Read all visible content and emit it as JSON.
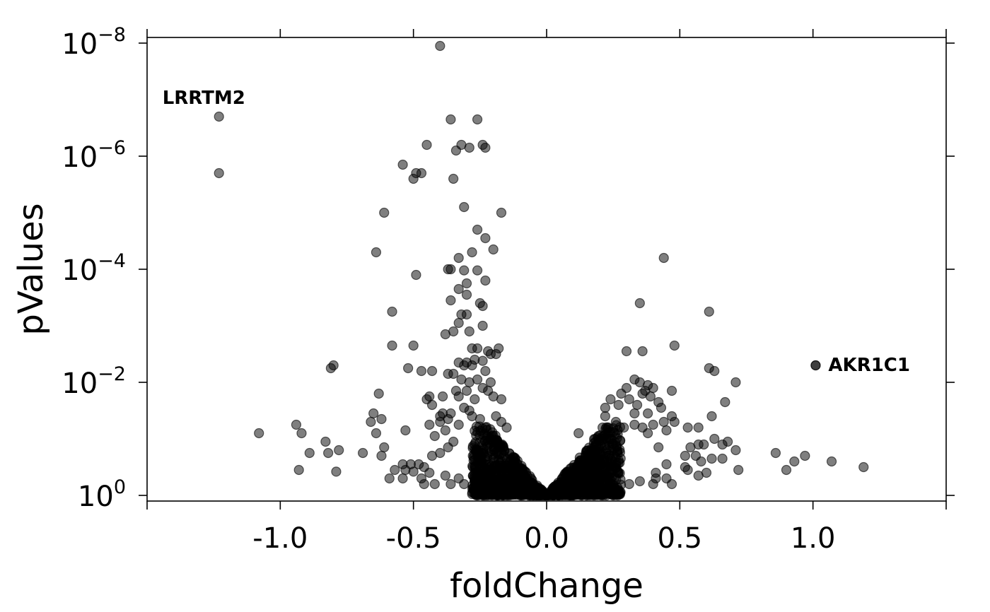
{
  "chart_data": {
    "type": "scatter",
    "xlabel": "foldChange",
    "ylabel": "pValues",
    "xlim": [
      -1.5,
      1.5
    ],
    "ylim_log10": [
      0,
      -8
    ],
    "y_scale": "log (inverted)",
    "x_ticks": [
      {
        "value": -1.0,
        "label": "-1.0"
      },
      {
        "value": -0.5,
        "label": "-0.5"
      },
      {
        "value": 0.0,
        "label": "0.0"
      },
      {
        "value": 0.5,
        "label": "0.5"
      },
      {
        "value": 1.0,
        "label": "1.0"
      }
    ],
    "y_ticks": [
      {
        "exp": 0,
        "base": "10",
        "sup": "0"
      },
      {
        "exp": -2,
        "base": "10",
        "sup": "−2"
      },
      {
        "exp": -4,
        "base": "10",
        "sup": "−4"
      },
      {
        "exp": -6,
        "base": "10",
        "sup": "−6"
      },
      {
        "exp": -8,
        "base": "10",
        "sup": "−8"
      }
    ],
    "grid": false,
    "annotations": [
      {
        "text": "LRRTM2",
        "x": -1.23,
        "log10p": -6.7
      },
      {
        "text": "AKR1C1",
        "x": 1.01,
        "log10p": -2.3
      }
    ],
    "points_log10": [
      [
        -0.4,
        -7.95
      ],
      [
        -0.36,
        -6.65
      ],
      [
        -0.26,
        -6.65
      ],
      [
        -0.45,
        -6.2
      ],
      [
        -0.32,
        -6.2
      ],
      [
        -0.29,
        -6.15
      ],
      [
        -0.24,
        -6.2
      ],
      [
        -0.34,
        -6.1
      ],
      [
        -0.23,
        -6.15
      ],
      [
        -0.54,
        -5.85
      ],
      [
        -0.49,
        -5.7
      ],
      [
        -0.47,
        -5.7
      ],
      [
        -0.5,
        -5.6
      ],
      [
        -0.35,
        -5.6
      ],
      [
        -0.61,
        -5.0
      ],
      [
        -0.31,
        -5.1
      ],
      [
        -0.17,
        -5.0
      ],
      [
        -1.23,
        -5.7
      ],
      [
        -0.64,
        -4.3
      ],
      [
        -0.26,
        -4.7
      ],
      [
        -0.23,
        -4.55
      ],
      [
        -0.28,
        -4.3
      ],
      [
        -0.2,
        -4.35
      ],
      [
        -0.33,
        -4.2
      ],
      [
        -0.36,
        -4.0
      ],
      [
        -0.37,
        -4.0
      ],
      [
        -0.31,
        -3.98
      ],
      [
        -0.49,
        -3.9
      ],
      [
        -0.26,
        -3.98
      ],
      [
        -0.3,
        -3.75
      ],
      [
        -0.23,
        -3.8
      ],
      [
        -0.33,
        -3.65
      ],
      [
        -0.3,
        -3.55
      ],
      [
        -0.36,
        -3.45
      ],
      [
        -0.25,
        -3.4
      ],
      [
        -0.24,
        -3.35
      ],
      [
        -0.58,
        -3.25
      ],
      [
        -0.32,
        -3.2
      ],
      [
        -0.3,
        -3.2
      ],
      [
        -0.33,
        -3.05
      ],
      [
        -0.24,
        -3.0
      ],
      [
        -0.29,
        -2.9
      ],
      [
        -0.35,
        -2.9
      ],
      [
        -0.38,
        -2.85
      ],
      [
        -0.58,
        -2.65
      ],
      [
        -0.5,
        -2.65
      ],
      [
        -0.26,
        -2.6
      ],
      [
        -0.22,
        -2.55
      ],
      [
        -0.28,
        -2.6
      ],
      [
        -0.18,
        -2.6
      ],
      [
        -0.21,
        -2.5
      ],
      [
        -0.19,
        -2.5
      ],
      [
        -0.33,
        -2.35
      ],
      [
        -0.3,
        -2.35
      ],
      [
        -0.27,
        -2.4
      ],
      [
        -0.24,
        -2.38
      ],
      [
        -0.31,
        -2.3
      ],
      [
        -0.28,
        -2.3
      ],
      [
        -0.8,
        -2.3
      ],
      [
        -0.81,
        -2.25
      ],
      [
        -0.52,
        -2.25
      ],
      [
        -0.47,
        -2.2
      ],
      [
        -0.43,
        -2.2
      ],
      [
        -0.37,
        -2.15
      ],
      [
        -0.35,
        -2.15
      ],
      [
        -0.23,
        -2.2
      ],
      [
        -0.26,
        -2.05
      ],
      [
        -0.29,
        -2.0
      ],
      [
        -0.32,
        -2.05
      ],
      [
        -0.21,
        -2.0
      ],
      [
        -0.24,
        -1.9
      ],
      [
        -0.34,
        -1.85
      ],
      [
        -0.44,
        -1.75
      ],
      [
        -0.45,
        -1.7
      ],
      [
        -0.3,
        -1.85
      ],
      [
        -0.22,
        -1.85
      ],
      [
        -0.63,
        -1.8
      ],
      [
        -0.39,
        -1.75
      ],
      [
        -0.33,
        -1.75
      ],
      [
        -0.27,
        -1.7
      ],
      [
        -0.2,
        -1.75
      ],
      [
        -0.17,
        -1.7
      ],
      [
        -0.43,
        -1.6
      ],
      [
        -0.31,
        -1.55
      ],
      [
        -0.29,
        -1.5
      ],
      [
        -0.36,
        -1.45
      ],
      [
        -0.39,
        -1.45
      ],
      [
        -0.65,
        -1.45
      ],
      [
        -0.62,
        -1.35
      ],
      [
        -0.4,
        -1.4
      ],
      [
        -0.37,
        -1.35
      ],
      [
        -0.28,
        -1.4
      ],
      [
        -0.25,
        -1.35
      ],
      [
        -0.19,
        -1.4
      ],
      [
        -0.4,
        -1.3
      ],
      [
        -0.33,
        -1.25
      ],
      [
        -0.17,
        -1.3
      ],
      [
        -0.15,
        -1.2
      ],
      [
        -0.66,
        -1.3
      ],
      [
        -0.64,
        -1.1
      ],
      [
        -0.53,
        -1.15
      ],
      [
        -0.44,
        -1.25
      ],
      [
        -0.38,
        -1.15
      ],
      [
        -0.23,
        -1.2
      ],
      [
        -0.94,
        -1.25
      ],
      [
        -1.08,
        -1.1
      ],
      [
        -0.92,
        -1.1
      ],
      [
        -0.83,
        -0.95
      ],
      [
        -0.42,
        -1.05
      ],
      [
        -0.35,
        -0.95
      ],
      [
        -0.37,
        -0.85
      ],
      [
        -0.61,
        -0.85
      ],
      [
        -0.78,
        -0.8
      ],
      [
        -0.89,
        -0.75
      ],
      [
        -0.82,
        -0.75
      ],
      [
        -0.69,
        -0.75
      ],
      [
        -0.62,
        -0.7
      ],
      [
        -0.43,
        -0.7
      ],
      [
        -0.4,
        -0.75
      ],
      [
        -0.54,
        -0.55
      ],
      [
        -0.48,
        -0.55
      ],
      [
        -0.51,
        -0.55
      ],
      [
        -0.53,
        -0.45
      ],
      [
        -0.46,
        -0.5
      ],
      [
        -0.93,
        -0.45
      ],
      [
        -0.79,
        -0.42
      ],
      [
        -0.57,
        -0.45
      ],
      [
        -0.5,
        -0.42
      ],
      [
        -0.59,
        -0.3
      ],
      [
        -0.54,
        -0.3
      ],
      [
        -0.47,
        -0.3
      ],
      [
        -0.46,
        -0.2
      ],
      [
        -0.42,
        -0.2
      ],
      [
        -0.38,
        -0.35
      ],
      [
        -0.33,
        -0.3
      ],
      [
        -0.36,
        -0.2
      ],
      [
        -0.31,
        -0.2
      ],
      [
        -0.44,
        -0.4
      ],
      [
        -0.27,
        -0.25
      ],
      [
        -0.24,
        -0.2
      ],
      [
        -0.2,
        -0.15
      ],
      [
        0.44,
        -4.2
      ],
      [
        0.35,
        -3.4
      ],
      [
        0.61,
        -3.25
      ],
      [
        0.48,
        -2.65
      ],
      [
        0.3,
        -2.55
      ],
      [
        0.36,
        -2.55
      ],
      [
        0.61,
        -2.25
      ],
      [
        0.63,
        -2.2
      ],
      [
        1.01,
        -2.3
      ],
      [
        0.33,
        -2.05
      ],
      [
        0.35,
        -2.0
      ],
      [
        0.71,
        -2.0
      ],
      [
        0.38,
        -1.95
      ],
      [
        0.3,
        -1.9
      ],
      [
        0.4,
        -1.9
      ],
      [
        0.37,
        -1.85
      ],
      [
        0.47,
        -1.85
      ],
      [
        0.28,
        -1.8
      ],
      [
        0.36,
        -1.8
      ],
      [
        0.39,
        -1.75
      ],
      [
        0.31,
        -1.7
      ],
      [
        0.24,
        -1.7
      ],
      [
        0.42,
        -1.65
      ],
      [
        0.67,
        -1.65
      ],
      [
        0.34,
        -1.6
      ],
      [
        0.27,
        -1.6
      ],
      [
        0.43,
        -1.55
      ],
      [
        0.22,
        -1.55
      ],
      [
        0.33,
        -1.45
      ],
      [
        0.38,
        -1.45
      ],
      [
        0.47,
        -1.4
      ],
      [
        0.22,
        -1.4
      ],
      [
        0.62,
        -1.4
      ],
      [
        0.48,
        -1.3
      ],
      [
        0.44,
        -1.3
      ],
      [
        0.33,
        -1.25
      ],
      [
        0.4,
        -1.25
      ],
      [
        0.26,
        -1.3
      ],
      [
        0.53,
        -1.2
      ],
      [
        0.57,
        -1.2
      ],
      [
        0.21,
        -1.2
      ],
      [
        0.29,
        -1.2
      ],
      [
        0.36,
        -1.2
      ],
      [
        0.45,
        -1.15
      ],
      [
        0.38,
        -1.1
      ],
      [
        0.12,
        -1.1
      ],
      [
        0.63,
        -1.0
      ],
      [
        0.68,
        -0.95
      ],
      [
        0.66,
        -0.9
      ],
      [
        0.57,
        -0.9
      ],
      [
        0.59,
        -0.9
      ],
      [
        0.54,
        -0.85
      ],
      [
        0.42,
        -0.85
      ],
      [
        0.71,
        -0.8
      ],
      [
        0.86,
        -0.75
      ],
      [
        0.56,
        -0.7
      ],
      [
        0.97,
        -0.7
      ],
      [
        0.62,
        -0.65
      ],
      [
        0.66,
        -0.65
      ],
      [
        0.52,
        -0.7
      ],
      [
        0.58,
        -0.6
      ],
      [
        1.07,
        -0.6
      ],
      [
        0.93,
        -0.6
      ],
      [
        0.45,
        -0.55
      ],
      [
        0.52,
        -0.5
      ],
      [
        0.9,
        -0.45
      ],
      [
        1.19,
        -0.5
      ],
      [
        0.72,
        -0.45
      ],
      [
        0.6,
        -0.4
      ],
      [
        0.53,
        -0.45
      ],
      [
        0.57,
        -0.35
      ],
      [
        0.41,
        -0.4
      ],
      [
        0.45,
        -0.3
      ],
      [
        0.41,
        -0.3
      ],
      [
        0.47,
        -0.2
      ],
      [
        0.4,
        -0.2
      ],
      [
        0.35,
        -0.25
      ],
      [
        0.31,
        -0.2
      ]
    ]
  }
}
